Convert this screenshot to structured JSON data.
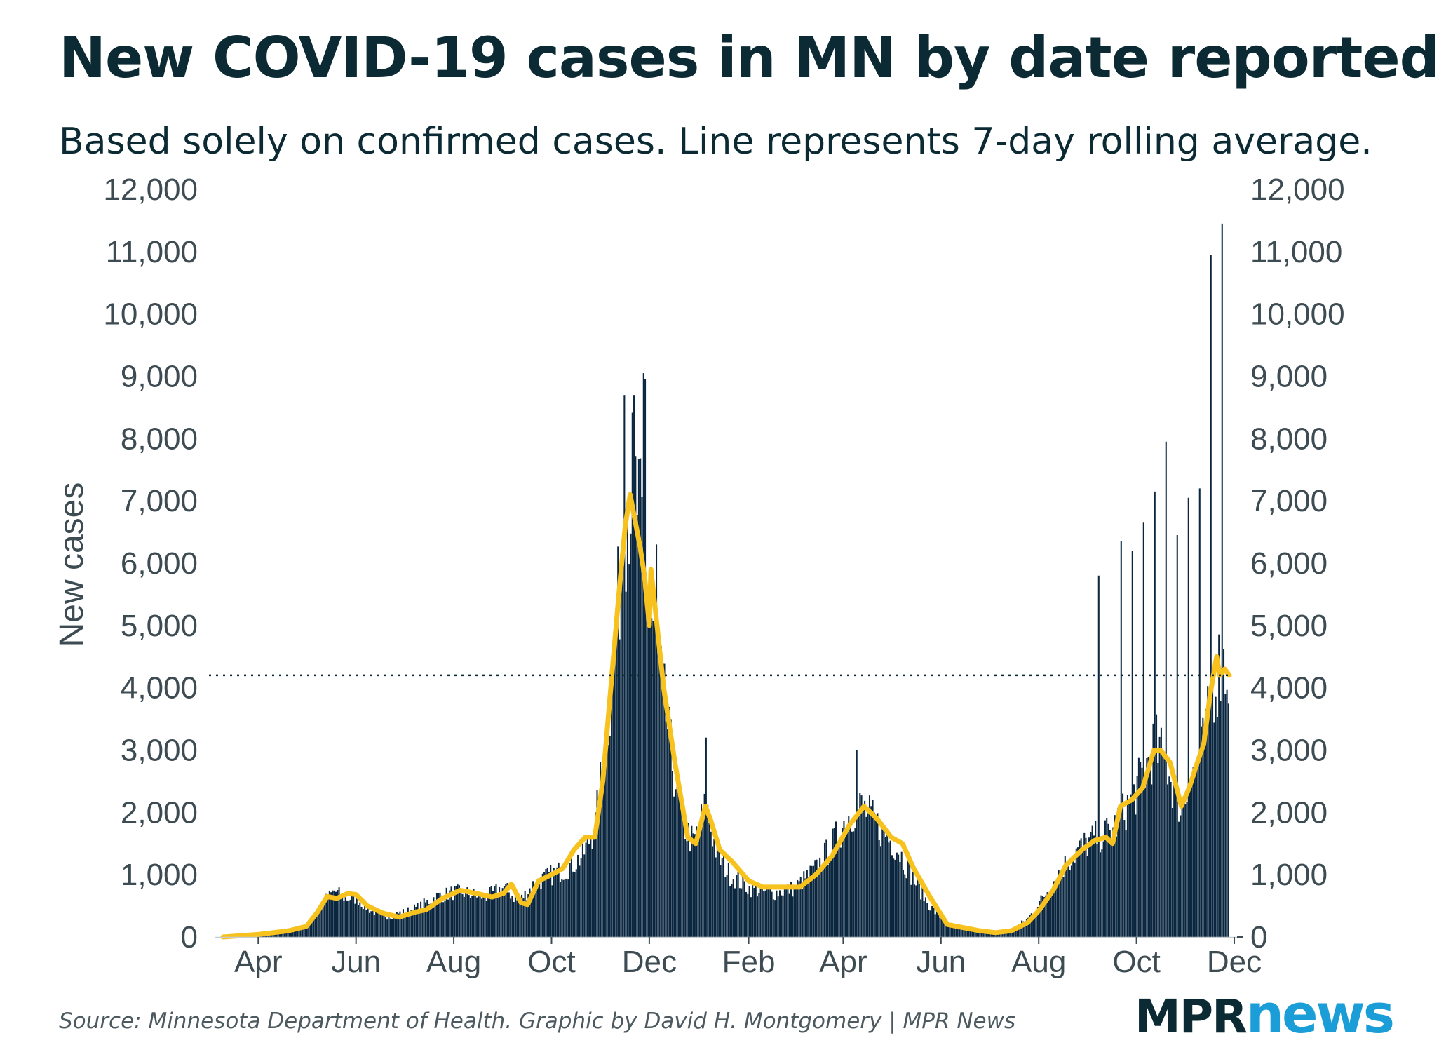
{
  "header": {
    "title": "New COVID-19 cases in MN by date reported",
    "subtitle": "Based solely on confirmed cases. Line represents 7-day rolling average."
  },
  "footer": {
    "source": "Source: Minnesota Department of Health. Graphic by David H. Montgomery | MPR News",
    "logo_mpr": "MPR",
    "logo_news": "news"
  },
  "colors": {
    "bars": "#0b2740",
    "line": "#f7c21d",
    "text": "#0b2a33",
    "axis_text": "#3d4b52",
    "logo_blue": "#1b9dd8"
  },
  "chart_data": {
    "type": "bar",
    "ylabel": "New cases",
    "ylim": [
      0,
      12000
    ],
    "y_ticks": [
      0,
      1000,
      2000,
      3000,
      4000,
      5000,
      6000,
      7000,
      8000,
      9000,
      10000,
      11000,
      12000
    ],
    "y_tick_labels": [
      "0",
      "1,000",
      "2,000",
      "3,000",
      "4,000",
      "5,000",
      "6,000",
      "7,000",
      "8,000",
      "9,000",
      "10,000",
      "11,000",
      "12,000"
    ],
    "x_tick_labels": [
      "Apr",
      "Jun",
      "Aug",
      "Oct",
      "Dec",
      "Feb",
      "Apr",
      "Jun",
      "Aug",
      "Oct",
      "Dec"
    ],
    "x_tick_dates": [
      "2020-04-01",
      "2020-06-01",
      "2020-08-01",
      "2020-10-01",
      "2020-12-01",
      "2021-02-01",
      "2021-04-01",
      "2021-06-01",
      "2021-08-01",
      "2021-10-01",
      "2021-12-01"
    ],
    "x_range": [
      "2020-03-10",
      "2021-12-01"
    ],
    "reference_line": {
      "y": 4200,
      "style": "dotted"
    },
    "bar_series": {
      "name": "Daily new cases",
      "points": [
        [
          "2020-03-10",
          10
        ],
        [
          "2020-04-01",
          40
        ],
        [
          "2020-04-20",
          100
        ],
        [
          "2020-05-01",
          170
        ],
        [
          "2020-05-10",
          520
        ],
        [
          "2020-05-18",
          740
        ],
        [
          "2020-05-25",
          620
        ],
        [
          "2020-06-01",
          620
        ],
        [
          "2020-06-10",
          420
        ],
        [
          "2020-06-20",
          340
        ],
        [
          "2020-07-01",
          400
        ],
        [
          "2020-07-10",
          480
        ],
        [
          "2020-07-20",
          640
        ],
        [
          "2020-08-01",
          720
        ],
        [
          "2020-08-10",
          700
        ],
        [
          "2020-08-20",
          640
        ],
        [
          "2020-09-01",
          800
        ],
        [
          "2020-09-10",
          560
        ],
        [
          "2020-09-20",
          860
        ],
        [
          "2020-10-01",
          1000
        ],
        [
          "2020-10-10",
          1100
        ],
        [
          "2020-10-20",
          1300
        ],
        [
          "2020-10-28",
          1800
        ],
        [
          "2020-11-05",
          3500
        ],
        [
          "2020-11-10",
          5000
        ],
        [
          "2020-11-15",
          6600
        ],
        [
          "2020-11-20",
          7300
        ],
        [
          "2020-11-24",
          6800
        ],
        [
          "2020-12-01",
          5300
        ],
        [
          "2020-12-08",
          4100
        ],
        [
          "2020-12-15",
          2800
        ],
        [
          "2020-12-22",
          1800
        ],
        [
          "2020-12-28",
          1500
        ],
        [
          "2021-01-05",
          2100
        ],
        [
          "2021-01-12",
          1300
        ],
        [
          "2021-01-20",
          1000
        ],
        [
          "2021-02-01",
          780
        ],
        [
          "2021-02-15",
          700
        ],
        [
          "2021-03-01",
          780
        ],
        [
          "2021-03-15",
          1100
        ],
        [
          "2021-03-25",
          1500
        ],
        [
          "2021-04-05",
          2000
        ],
        [
          "2021-04-12",
          2100
        ],
        [
          "2021-04-25",
          1700
        ],
        [
          "2021-05-05",
          1400
        ],
        [
          "2021-05-15",
          900
        ],
        [
          "2021-05-25",
          480
        ],
        [
          "2021-06-05",
          200
        ],
        [
          "2021-06-20",
          110
        ],
        [
          "2021-07-05",
          80
        ],
        [
          "2021-07-15",
          120
        ],
        [
          "2021-07-25",
          300
        ],
        [
          "2021-08-01",
          550
        ],
        [
          "2021-08-15",
          1100
        ],
        [
          "2021-08-25",
          1400
        ],
        [
          "2021-09-05",
          1600
        ],
        [
          "2021-09-15",
          1700
        ],
        [
          "2021-09-25",
          2100
        ],
        [
          "2021-10-05",
          2600
        ],
        [
          "2021-10-12",
          3100
        ],
        [
          "2021-10-20",
          2700
        ],
        [
          "2021-10-28",
          2100
        ],
        [
          "2021-11-05",
          2600
        ],
        [
          "2021-11-12",
          3100
        ],
        [
          "2021-11-18",
          4100
        ],
        [
          "2021-11-22",
          4400
        ],
        [
          "2021-11-27",
          4300
        ]
      ],
      "spikes": [
        [
          "2020-11-15",
          8700
        ],
        [
          "2020-11-21",
          8700
        ],
        [
          "2020-11-27",
          9050
        ],
        [
          "2020-11-28",
          8950
        ],
        [
          "2020-12-05",
          6300
        ],
        [
          "2021-01-05",
          3200
        ],
        [
          "2021-04-09",
          3000
        ],
        [
          "2021-09-07",
          5800
        ],
        [
          "2021-09-21",
          6350
        ],
        [
          "2021-09-28",
          6200
        ],
        [
          "2021-10-05",
          6650
        ],
        [
          "2021-10-12",
          7150
        ],
        [
          "2021-10-19",
          7950
        ],
        [
          "2021-10-26",
          6450
        ],
        [
          "2021-11-02",
          7050
        ],
        [
          "2021-11-09",
          7200
        ],
        [
          "2021-11-16",
          10950
        ],
        [
          "2021-11-23",
          11450
        ]
      ]
    },
    "line_series": {
      "name": "7-day rolling average",
      "points": [
        [
          "2020-03-10",
          0
        ],
        [
          "2020-04-01",
          40
        ],
        [
          "2020-04-20",
          100
        ],
        [
          "2020-05-01",
          170
        ],
        [
          "2020-05-08",
          400
        ],
        [
          "2020-05-14",
          650
        ],
        [
          "2020-05-20",
          620
        ],
        [
          "2020-05-27",
          700
        ],
        [
          "2020-06-01",
          680
        ],
        [
          "2020-06-08",
          500
        ],
        [
          "2020-06-18",
          380
        ],
        [
          "2020-06-28",
          320
        ],
        [
          "2020-07-08",
          400
        ],
        [
          "2020-07-15",
          440
        ],
        [
          "2020-07-25",
          620
        ],
        [
          "2020-08-05",
          750
        ],
        [
          "2020-08-15",
          700
        ],
        [
          "2020-08-25",
          640
        ],
        [
          "2020-09-01",
          700
        ],
        [
          "2020-09-06",
          850
        ],
        [
          "2020-09-12",
          550
        ],
        [
          "2020-09-16",
          520
        ],
        [
          "2020-09-23",
          900
        ],
        [
          "2020-10-01",
          1000
        ],
        [
          "2020-10-08",
          1100
        ],
        [
          "2020-10-15",
          1400
        ],
        [
          "2020-10-22",
          1600
        ],
        [
          "2020-10-28",
          1600
        ],
        [
          "2020-11-02",
          2500
        ],
        [
          "2020-11-07",
          4000
        ],
        [
          "2020-11-12",
          5500
        ],
        [
          "2020-11-16",
          6600
        ],
        [
          "2020-11-19",
          7100
        ],
        [
          "2020-11-22",
          6700
        ],
        [
          "2020-11-25",
          6300
        ],
        [
          "2020-11-28",
          5800
        ],
        [
          "2020-12-01",
          5000
        ],
        [
          "2020-12-02",
          5900
        ],
        [
          "2020-12-05",
          5200
        ],
        [
          "2020-12-10",
          4000
        ],
        [
          "2020-12-17",
          2800
        ],
        [
          "2020-12-25",
          1600
        ],
        [
          "2020-12-30",
          1500
        ],
        [
          "2021-01-05",
          2100
        ],
        [
          "2021-01-08",
          1900
        ],
        [
          "2021-01-14",
          1400
        ],
        [
          "2021-01-22",
          1200
        ],
        [
          "2021-02-01",
          900
        ],
        [
          "2021-02-10",
          800
        ],
        [
          "2021-02-22",
          800
        ],
        [
          "2021-03-05",
          800
        ],
        [
          "2021-03-15",
          1000
        ],
        [
          "2021-03-25",
          1300
        ],
        [
          "2021-04-05",
          1800
        ],
        [
          "2021-04-14",
          2100
        ],
        [
          "2021-04-22",
          1900
        ],
        [
          "2021-05-01",
          1600
        ],
        [
          "2021-05-08",
          1500
        ],
        [
          "2021-05-15",
          1100
        ],
        [
          "2021-05-25",
          650
        ],
        [
          "2021-06-05",
          200
        ],
        [
          "2021-06-15",
          150
        ],
        [
          "2021-06-25",
          100
        ],
        [
          "2021-07-05",
          70
        ],
        [
          "2021-07-15",
          100
        ],
        [
          "2021-07-25",
          230
        ],
        [
          "2021-08-01",
          420
        ],
        [
          "2021-08-10",
          750
        ],
        [
          "2021-08-18",
          1150
        ],
        [
          "2021-08-28",
          1400
        ],
        [
          "2021-09-05",
          1550
        ],
        [
          "2021-09-12",
          1600
        ],
        [
          "2021-09-16",
          1500
        ],
        [
          "2021-09-21",
          2100
        ],
        [
          "2021-09-28",
          2200
        ],
        [
          "2021-10-05",
          2400
        ],
        [
          "2021-10-12",
          3000
        ],
        [
          "2021-10-16",
          3000
        ],
        [
          "2021-10-22",
          2800
        ],
        [
          "2021-10-25",
          2500
        ],
        [
          "2021-10-29",
          2100
        ],
        [
          "2021-11-03",
          2400
        ],
        [
          "2021-11-08",
          2800
        ],
        [
          "2021-11-12",
          3100
        ],
        [
          "2021-11-16",
          3900
        ],
        [
          "2021-11-20",
          4500
        ],
        [
          "2021-11-22",
          4200
        ],
        [
          "2021-11-25",
          4300
        ],
        [
          "2021-11-28",
          4200
        ]
      ]
    }
  }
}
